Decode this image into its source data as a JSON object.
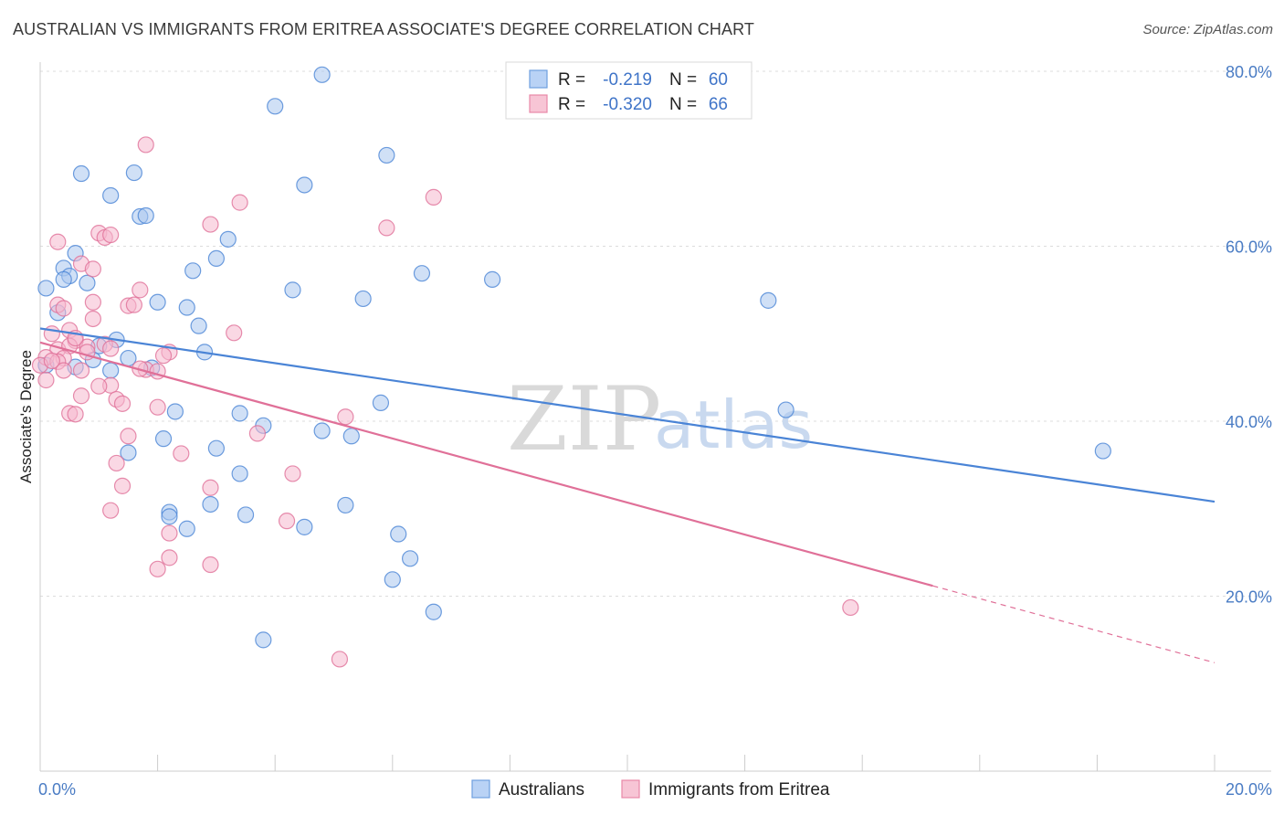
{
  "title": "AUSTRALIAN VS IMMIGRANTS FROM ERITREA ASSOCIATE'S DEGREE CORRELATION CHART",
  "source": "Source: ZipAtlas.com",
  "watermark": {
    "zip": "ZIP",
    "atlas": "atlas"
  },
  "legend_top": [
    {
      "r_label": "R =",
      "r_value": "-0.219",
      "n_label": "N =",
      "n_value": "60",
      "color": "#6e9fe0",
      "fill": "#b9d2f5"
    },
    {
      "r_label": "R =",
      "r_value": "-0.320",
      "n_label": "N =",
      "n_value": "66",
      "color": "#e889a8",
      "fill": "#f7c5d5"
    }
  ],
  "chart_data": {
    "type": "scatter",
    "title": "AUSTRALIAN VS IMMIGRANTS FROM ERITREA ASSOCIATE'S DEGREE CORRELATION CHART",
    "xlabel": "",
    "ylabel": "Associate's Degree",
    "xlim": [
      0,
      20
    ],
    "ylim": [
      0,
      80
    ],
    "x_ticks": [
      "0.0%",
      "20.0%"
    ],
    "y_ticks": [
      {
        "value": 20,
        "label": "20.0%"
      },
      {
        "value": 40,
        "label": "40.0%"
      },
      {
        "value": 60,
        "label": "60.0%"
      },
      {
        "value": 80,
        "label": "80.0%"
      }
    ],
    "grid": "horizontal-dashed",
    "legend_placement": "top-center",
    "series": [
      {
        "name": "Australians",
        "color": "#4a84d6",
        "fill": "#a9c6ef",
        "trend": {
          "x": [
            0,
            20
          ],
          "y": [
            50.6,
            30.8
          ],
          "dashed_from": null
        },
        "points": [
          [
            4.8,
            79.6
          ],
          [
            4.0,
            76.0
          ],
          [
            5.9,
            70.4
          ],
          [
            0.7,
            68.3
          ],
          [
            1.6,
            68.4
          ],
          [
            4.5,
            67.0
          ],
          [
            1.2,
            65.8
          ],
          [
            1.7,
            63.4
          ],
          [
            1.8,
            63.5
          ],
          [
            3.2,
            60.8
          ],
          [
            0.6,
            59.2
          ],
          [
            3.0,
            58.6
          ],
          [
            0.4,
            57.5
          ],
          [
            2.6,
            57.2
          ],
          [
            0.5,
            56.6
          ],
          [
            0.1,
            55.2
          ],
          [
            0.4,
            56.2
          ],
          [
            0.8,
            55.8
          ],
          [
            6.5,
            56.9
          ],
          [
            7.7,
            56.2
          ],
          [
            4.3,
            55.0
          ],
          [
            5.5,
            54.0
          ],
          [
            12.4,
            53.8
          ],
          [
            2.0,
            53.6
          ],
          [
            2.5,
            53.0
          ],
          [
            0.3,
            52.4
          ],
          [
            2.7,
            50.9
          ],
          [
            1.3,
            49.3
          ],
          [
            1.0,
            48.6
          ],
          [
            2.8,
            47.9
          ],
          [
            1.5,
            47.2
          ],
          [
            0.9,
            47.0
          ],
          [
            1.2,
            45.8
          ],
          [
            1.9,
            46.1
          ],
          [
            0.1,
            46.4
          ],
          [
            5.8,
            42.1
          ],
          [
            2.3,
            41.1
          ],
          [
            3.4,
            40.9
          ],
          [
            12.7,
            41.3
          ],
          [
            3.8,
            39.5
          ],
          [
            4.8,
            38.9
          ],
          [
            5.3,
            38.3
          ],
          [
            2.1,
            38.0
          ],
          [
            3.0,
            36.9
          ],
          [
            1.5,
            36.4
          ],
          [
            18.1,
            36.6
          ],
          [
            3.4,
            34.0
          ],
          [
            5.2,
            30.4
          ],
          [
            2.9,
            30.5
          ],
          [
            2.2,
            29.6
          ],
          [
            2.2,
            29.1
          ],
          [
            3.5,
            29.3
          ],
          [
            2.5,
            27.7
          ],
          [
            4.5,
            27.9
          ],
          [
            6.1,
            27.1
          ],
          [
            6.3,
            24.3
          ],
          [
            6.0,
            21.9
          ],
          [
            6.7,
            18.2
          ],
          [
            3.8,
            15.0
          ],
          [
            0.6,
            46.2
          ]
        ]
      },
      {
        "name": "Immigrants from Eritrea",
        "color": "#e07098",
        "fill": "#f5b8cd",
        "trend": {
          "x": [
            0,
            20
          ],
          "y": [
            49.0,
            12.4
          ],
          "dashed_from": 15.2
        },
        "points": [
          [
            1.8,
            71.6
          ],
          [
            6.7,
            65.6
          ],
          [
            3.4,
            65.0
          ],
          [
            2.9,
            62.5
          ],
          [
            5.9,
            62.1
          ],
          [
            1.0,
            61.5
          ],
          [
            1.1,
            61.0
          ],
          [
            1.2,
            61.3
          ],
          [
            0.3,
            60.5
          ],
          [
            0.7,
            58.0
          ],
          [
            0.9,
            57.4
          ],
          [
            1.7,
            55.0
          ],
          [
            0.9,
            53.6
          ],
          [
            0.3,
            53.3
          ],
          [
            1.5,
            53.2
          ],
          [
            1.6,
            53.3
          ],
          [
            0.4,
            52.9
          ],
          [
            0.9,
            51.7
          ],
          [
            3.3,
            50.1
          ],
          [
            0.2,
            50.0
          ],
          [
            0.5,
            50.4
          ],
          [
            0.6,
            49.2
          ],
          [
            1.1,
            48.8
          ],
          [
            0.8,
            48.5
          ],
          [
            0.3,
            48.2
          ],
          [
            0.5,
            48.6
          ],
          [
            1.2,
            48.3
          ],
          [
            2.2,
            47.9
          ],
          [
            0.1,
            47.3
          ],
          [
            0.4,
            47.2
          ],
          [
            0.3,
            46.8
          ],
          [
            0.0,
            46.4
          ],
          [
            0.7,
            45.8
          ],
          [
            0.4,
            45.8
          ],
          [
            1.8,
            45.9
          ],
          [
            2.0,
            45.7
          ],
          [
            0.1,
            44.7
          ],
          [
            1.2,
            44.1
          ],
          [
            1.3,
            42.5
          ],
          [
            0.7,
            42.9
          ],
          [
            1.4,
            42.0
          ],
          [
            2.0,
            41.6
          ],
          [
            0.5,
            40.9
          ],
          [
            0.6,
            40.8
          ],
          [
            5.2,
            40.5
          ],
          [
            1.5,
            38.3
          ],
          [
            3.7,
            38.6
          ],
          [
            2.4,
            36.3
          ],
          [
            1.3,
            35.2
          ],
          [
            4.3,
            34.0
          ],
          [
            1.4,
            32.6
          ],
          [
            2.9,
            32.4
          ],
          [
            1.2,
            29.8
          ],
          [
            4.2,
            28.6
          ],
          [
            2.2,
            27.2
          ],
          [
            2.2,
            24.4
          ],
          [
            2.0,
            23.1
          ],
          [
            2.9,
            23.6
          ],
          [
            5.1,
            12.8
          ],
          [
            13.8,
            18.7
          ],
          [
            0.2,
            46.9
          ],
          [
            0.8,
            47.9
          ],
          [
            1.0,
            44.0
          ],
          [
            1.7,
            46.0
          ],
          [
            2.1,
            47.5
          ],
          [
            0.6,
            49.5
          ]
        ]
      }
    ]
  },
  "bottom_legend": [
    {
      "label": "Australians",
      "color": "#6e9fe0",
      "fill": "#b9d2f5"
    },
    {
      "label": "Immigrants from Eritrea",
      "color": "#e889a8",
      "fill": "#f7c5d5"
    }
  ]
}
